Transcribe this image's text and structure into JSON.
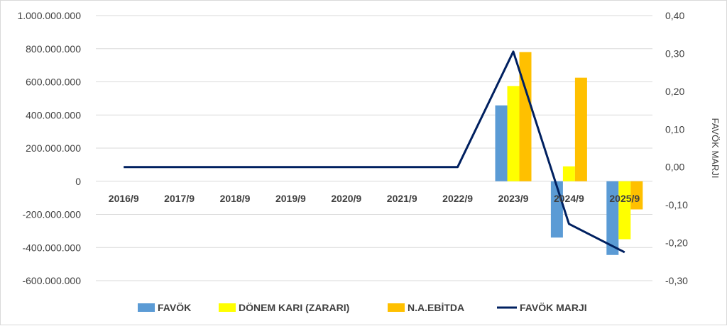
{
  "chart_data": {
    "type": "bar",
    "categories": [
      "2016/9",
      "2017/9",
      "2018/9",
      "2019/9",
      "2020/9",
      "2021/9",
      "2022/9",
      "2023/9",
      "2024/9",
      "2025/9"
    ],
    "series": [
      {
        "name": "FAVÖK",
        "kind": "bar",
        "axis": "left",
        "color": "#5b9bd5",
        "values": [
          0,
          0,
          0,
          0,
          0,
          0,
          0,
          458000000,
          -340000000,
          -445000000
        ]
      },
      {
        "name": "DÖNEM KARI (ZARARI)",
        "kind": "bar",
        "axis": "left",
        "color": "#ffff00",
        "values": [
          0,
          0,
          0,
          0,
          0,
          0,
          0,
          575000000,
          90000000,
          -350000000
        ]
      },
      {
        "name": "N.A.EBİTDA",
        "kind": "bar",
        "axis": "left",
        "color": "#ffc000",
        "values": [
          0,
          0,
          0,
          0,
          0,
          0,
          0,
          780000000,
          625000000,
          -170000000
        ]
      },
      {
        "name": "FAVÖK MARJI",
        "kind": "line",
        "axis": "right",
        "color": "#002060",
        "values": [
          0,
          0,
          0,
          0,
          0,
          0,
          0,
          0.305,
          -0.15,
          -0.225
        ]
      }
    ],
    "left_ticks": [
      "1.000.000.000",
      "800.000.000",
      "600.000.000",
      "400.000.000",
      "200.000.000",
      "0",
      "-200.000.000",
      "-400.000.000",
      "-600.000.000"
    ],
    "right_ticks": [
      "0,40",
      "0,30",
      "0,20",
      "0,10",
      "0,00",
      "-0,10",
      "-0,20",
      "-0,30"
    ],
    "ylim_left": [
      -600000000,
      1000000000
    ],
    "ylim_right": [
      -0.3,
      0.4
    ],
    "ylabel_right": "FAVÖK MARJI",
    "grid": true,
    "legend_position": "bottom"
  }
}
